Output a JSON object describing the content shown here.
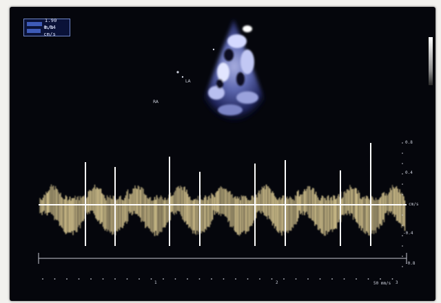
{
  "info_box": {
    "line1": "1.90 m/s",
    "line2": "0.84 cm/s"
  },
  "echo_view": {
    "label_left": "RA",
    "label_mid": "LA"
  },
  "doppler": {
    "velocity_labels": [
      "0.8",
      "0.4",
      "cm/s",
      "-0.4",
      "-0.8"
    ],
    "time_labels": [
      "1",
      "2",
      "3"
    ],
    "speed_label": "50 mm/s"
  },
  "colors": {
    "background": "#05060c",
    "doppler_signal": "#e8d59a",
    "baseline": "#ffffff",
    "overlay_text": "#dfe6ff"
  }
}
